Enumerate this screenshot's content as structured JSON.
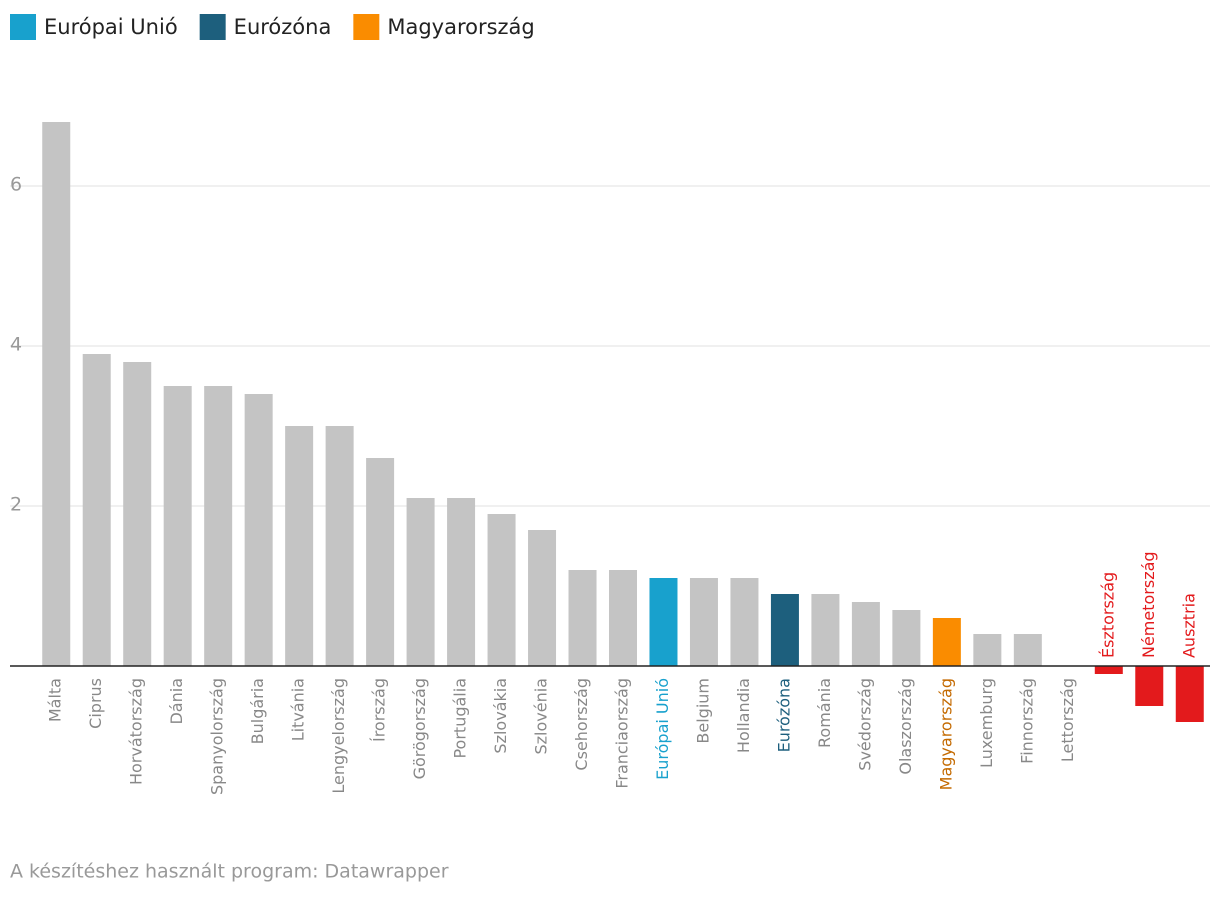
{
  "chart_data": {
    "type": "bar",
    "legend": [
      {
        "name": "Európai Unió",
        "color": "#18a1cd"
      },
      {
        "name": "Eurózóna",
        "color": "#1d5f7d"
      },
      {
        "name": "Magyarország",
        "color": "#fa8c00"
      }
    ],
    "categories": [
      "Málta",
      "Ciprus",
      "Horvátország",
      "Dánia",
      "Spanyolország",
      "Bulgária",
      "Litvánia",
      "Lengyelország",
      "Írország",
      "Görögország",
      "Portugália",
      "Szlovákia",
      "Szlovénia",
      "Csehország",
      "Franciaország",
      "Európai Unió",
      "Belgium",
      "Hollandia",
      "Eurózóna",
      "Románia",
      "Svédország",
      "Olaszország",
      "Magyarország",
      "Luxemburg",
      "Finnország",
      "Lettország",
      "Észtország",
      "Németország",
      "Ausztria"
    ],
    "values": [
      6.8,
      3.9,
      3.8,
      3.5,
      3.5,
      3.4,
      3.0,
      3.0,
      2.6,
      2.1,
      2.1,
      1.9,
      1.7,
      1.2,
      1.2,
      1.1,
      1.1,
      1.1,
      0.9,
      0.9,
      0.8,
      0.7,
      0.6,
      0.4,
      0.4,
      0,
      -0.1,
      -0.5,
      -0.7
    ],
    "colors": [
      "#c4c4c4",
      "#c4c4c4",
      "#c4c4c4",
      "#c4c4c4",
      "#c4c4c4",
      "#c4c4c4",
      "#c4c4c4",
      "#c4c4c4",
      "#c4c4c4",
      "#c4c4c4",
      "#c4c4c4",
      "#c4c4c4",
      "#c4c4c4",
      "#c4c4c4",
      "#c4c4c4",
      "#18a1cd",
      "#c4c4c4",
      "#c4c4c4",
      "#1d5f7d",
      "#c4c4c4",
      "#c4c4c4",
      "#c4c4c4",
      "#fa8c00",
      "#c4c4c4",
      "#c4c4c4",
      "#c4c4c4",
      "#e31a1c",
      "#e31a1c",
      "#e31a1c"
    ],
    "ylim": [
      -1,
      7
    ],
    "yticks": [
      2,
      4,
      6
    ],
    "grid": true,
    "source": "A készítéshez használt program: Datawrapper"
  }
}
